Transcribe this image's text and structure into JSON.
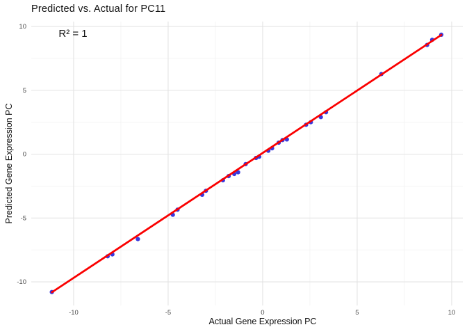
{
  "title": "Predicted vs. Actual for PC11",
  "annotation": "R² = 1",
  "axes": {
    "x_title": "Actual Gene Expression PC",
    "y_title": "Predicted Gene Expression PC"
  },
  "colors": {
    "background": "#FFFFFF",
    "point": "#2E2EDB",
    "fit_line": "#FA0000",
    "grid_major": "#E3E3E3",
    "grid_minor": "#F1F1F1",
    "tick_text": "#4D4D4D",
    "text": "#111111"
  },
  "chart_data": {
    "type": "scatter",
    "title": "Predicted vs. Actual for PC11",
    "xlabel": "Actual Gene Expression PC",
    "ylabel": "Predicted Gene Expression PC",
    "annotation": {
      "text": "R² = 1",
      "x": -10,
      "y": 9.4
    },
    "grid": true,
    "legend": "none",
    "xlim": [
      -12.24,
      10.59
    ],
    "ylim": [
      -11.85,
      10.38
    ],
    "x_ticks": [
      -10,
      -5,
      0,
      5,
      10
    ],
    "y_ticks": [
      -10,
      -5,
      0,
      5,
      10
    ],
    "x_tick_labels": [
      "-10",
      "-5",
      "0",
      "5",
      "10"
    ],
    "y_tick_labels": [
      "-10",
      "-5",
      "0",
      "5",
      "10"
    ],
    "x_minor_ticks": [
      -7.5,
      -2.5,
      2.5,
      7.5
    ],
    "y_minor_ticks": [
      -7.5,
      -2.5,
      2.5,
      7.5
    ],
    "points": [
      [
        -11.15,
        -10.8
      ],
      [
        -8.2,
        -8.0
      ],
      [
        -7.95,
        -7.85
      ],
      [
        -6.6,
        -6.65
      ],
      [
        -4.75,
        -4.75
      ],
      [
        -4.5,
        -4.35
      ],
      [
        -3.2,
        -3.18
      ],
      [
        -3.0,
        -2.87
      ],
      [
        -2.1,
        -2.05
      ],
      [
        -1.8,
        -1.72
      ],
      [
        -1.5,
        -1.55
      ],
      [
        -1.3,
        -1.42
      ],
      [
        -0.9,
        -0.78
      ],
      [
        -0.35,
        -0.3
      ],
      [
        -0.18,
        -0.2
      ],
      [
        0.3,
        0.26
      ],
      [
        0.5,
        0.46
      ],
      [
        0.85,
        0.9
      ],
      [
        1.05,
        1.1
      ],
      [
        1.28,
        1.15
      ],
      [
        2.3,
        2.3
      ],
      [
        2.55,
        2.5
      ],
      [
        3.08,
        2.9
      ],
      [
        3.35,
        3.28
      ],
      [
        6.28,
        6.27
      ],
      [
        8.7,
        8.55
      ],
      [
        8.97,
        8.95
      ],
      [
        9.45,
        9.35
      ]
    ],
    "fit_line": {
      "slope": 0.978,
      "intercept": 0.09,
      "x_start": -11.15,
      "x_end": 9.45
    }
  }
}
